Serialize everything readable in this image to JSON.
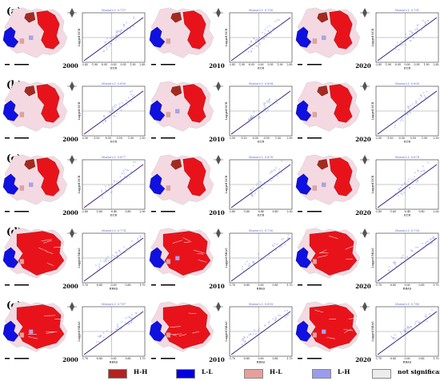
{
  "rows": [
    {
      "label": "(a)",
      "years": [
        "2000",
        "2010",
        "2020"
      ],
      "morans": [
        "Moran's I: 0.757",
        "Moran's I: 0.750",
        "Moran's I: 0.751"
      ],
      "xlabel": "ECR",
      "ylabel": "Lagged ECR",
      "xticks": [
        "-2.85",
        "-1.90",
        "-0.95",
        "0.00",
        "0.95",
        "1.90",
        "2.85"
      ]
    },
    {
      "label": "(b)",
      "years": [
        "2000",
        "2010",
        "2020"
      ],
      "morans": [
        "Moran's I: 0.800",
        "Moran's I: 0.804",
        "Moran's I: 0.800"
      ],
      "xlabel": "ECR",
      "ylabel": "Lagged ECR",
      "xticks": [
        "-2.50",
        "-1.50",
        "-0.50",
        "0.50",
        "1.50",
        "2.50"
      ]
    },
    {
      "label": "(c)",
      "years": [
        "2000",
        "2010",
        "2020"
      ],
      "morans": [
        "Moran's I: 0.877",
        "Moran's I: 0.878",
        "Moran's I: 0.878"
      ],
      "xlabel": "ECR",
      "ylabel": "Lagged ECR",
      "xticks": [
        "-2.80",
        "-1.60",
        "-0.40",
        "0.80",
        "2.00"
      ]
    },
    {
      "label": "(d)",
      "years": [
        "2000",
        "2010",
        "2020"
      ],
      "morans": [
        "Moran's I: 0.774",
        "Moran's I: 0.730",
        "Moran's I: 0.730"
      ],
      "xlabel": "RRAS",
      "ylabel": "Lagged RRAS",
      "xticks": [
        "-1.70",
        "-0.85",
        "0.00",
        "0.85",
        "1.70"
      ]
    },
    {
      "label": "(e)",
      "years": [
        "2000",
        "2010",
        "2020"
      ],
      "morans": [
        "Moran's I: 0.787",
        "Moran's I: 0.818",
        "Moran's I: 0.780"
      ],
      "xlabel": "RRAS",
      "ylabel": "Lagged RRAS",
      "xticks": [
        "-1.70",
        "-0.85",
        "0.00",
        "0.85",
        "1.70"
      ]
    }
  ],
  "legend": [
    {
      "label": "H-H",
      "color": "#b22222"
    },
    {
      "label": "L-L",
      "color": "#0000dd"
    },
    {
      "label": "H-L",
      "color": "#e6a09a"
    },
    {
      "label": "L-H",
      "color": "#9b9bee"
    },
    {
      "label": "not significant",
      "color": "#ececec"
    }
  ],
  "colors": {
    "hh": "#e8131a",
    "hh_dark": "#a52a1e",
    "ll": "#1010e0",
    "hl": "#e6a09a",
    "lh": "#a9a2ee",
    "ns": "#f4d9e2",
    "ns_grey": "#e6e6e6",
    "fit_line": "#3b1f7a",
    "points": "#8aa2e0"
  },
  "chart_data": [
    {
      "type": "scatter",
      "panel": "a",
      "years": [
        "2000",
        "2010",
        "2020"
      ],
      "morans_i": [
        0.757,
        0.75,
        0.751
      ]
    },
    {
      "type": "scatter",
      "panel": "b",
      "years": [
        "2000",
        "2010",
        "2020"
      ],
      "morans_i": [
        0.8,
        0.804,
        0.8
      ]
    },
    {
      "type": "scatter",
      "panel": "c",
      "years": [
        "2000",
        "2010",
        "2020"
      ],
      "morans_i": [
        0.877,
        0.878,
        0.878
      ]
    },
    {
      "type": "scatter",
      "panel": "d",
      "years": [
        "2000",
        "2010",
        "2020"
      ],
      "morans_i": [
        0.774,
        0.73,
        0.73
      ]
    },
    {
      "type": "scatter",
      "panel": "e",
      "years": [
        "2000",
        "2010",
        "2020"
      ],
      "morans_i": [
        0.787,
        0.818,
        0.78
      ]
    }
  ]
}
